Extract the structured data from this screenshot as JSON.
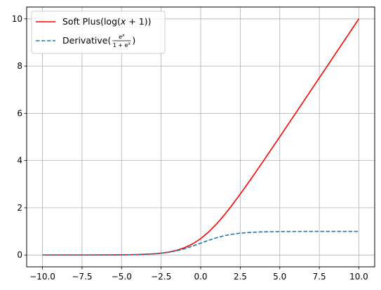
{
  "chart_data": {
    "type": "line",
    "title": "",
    "xlabel": "",
    "ylabel": "",
    "xlim": [
      -11,
      11
    ],
    "ylim": [
      -0.5,
      10.5
    ],
    "grid": true,
    "legend_position": "top-left",
    "x_ticks": [
      -10.0,
      -7.5,
      -5.0,
      -2.5,
      0.0,
      2.5,
      5.0,
      7.5,
      10.0
    ],
    "x_tick_labels": [
      "−10.0",
      "−7.5",
      "−5.0",
      "−2.5",
      "0.0",
      "2.5",
      "5.0",
      "7.5",
      "10.0"
    ],
    "y_ticks": [
      0,
      2,
      4,
      6,
      8,
      10
    ],
    "y_tick_labels": [
      "0",
      "2",
      "4",
      "6",
      "8",
      "10"
    ],
    "x": [
      -10,
      -9,
      -8,
      -7,
      -6,
      -5,
      -4,
      -3,
      -2.5,
      -2,
      -1.5,
      -1,
      -0.5,
      0,
      0.5,
      1,
      1.5,
      2,
      2.5,
      3,
      3.5,
      4,
      5,
      6,
      7,
      8,
      9,
      10
    ],
    "series": [
      {
        "name": "Soft Plus(log(x + 1))",
        "legend": {
          "before": "Soft Plus(log(",
          "math": "x",
          "mid": " + 1",
          "after": "))"
        },
        "style": "solid",
        "color": "#ff0000",
        "values": [
          5e-05,
          0.00012,
          0.00034,
          0.00091,
          0.00248,
          0.00672,
          0.01815,
          0.04859,
          0.07889,
          0.12693,
          0.20141,
          0.31326,
          0.47408,
          0.69315,
          0.97408,
          1.31326,
          1.70141,
          2.12693,
          2.57889,
          3.04859,
          3.52975,
          4.01815,
          5.00672,
          6.00248,
          7.00091,
          8.00034,
          9.00012,
          10.00005
        ]
      },
      {
        "name": "Derivative(e^x/(1+e^x))",
        "legend": {
          "before": "Derivative(",
          "num": "e",
          "num_sup": "x",
          "den": "1 + e",
          "den_sup": "x",
          "after": ")"
        },
        "style": "dashed",
        "color": "#1f77b4",
        "values": [
          5e-05,
          0.00012,
          0.00034,
          0.00091,
          0.00247,
          0.00669,
          0.01799,
          0.04743,
          0.07586,
          0.1192,
          0.18243,
          0.26894,
          0.37754,
          0.5,
          0.62246,
          0.73106,
          0.81757,
          0.8808,
          0.92414,
          0.95257,
          0.97069,
          0.98201,
          0.99331,
          0.99753,
          0.99909,
          0.99966,
          0.99988,
          0.99995
        ]
      }
    ]
  }
}
